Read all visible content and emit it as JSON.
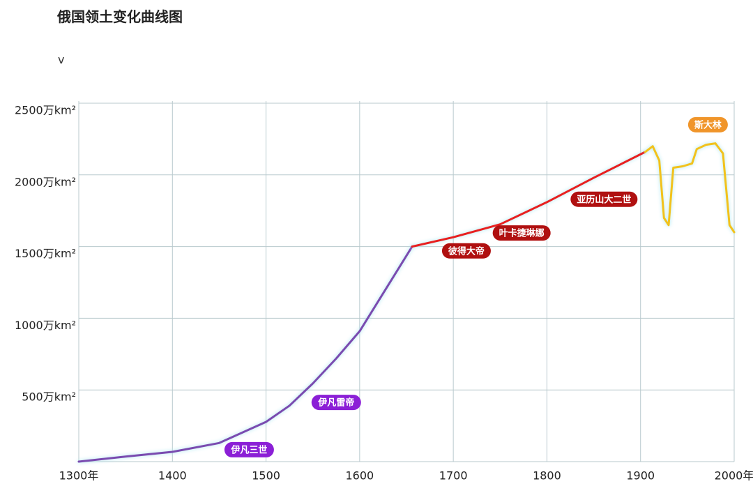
{
  "header": {
    "title": "俄国领土变化曲线图",
    "toggle": "v"
  },
  "chart_data": {
    "type": "line",
    "xlim": [
      1300,
      2000
    ],
    "ylim": [
      0,
      2500
    ],
    "xticks": [
      {
        "value": 1300,
        "label": "1300年"
      },
      1400,
      1500,
      1600,
      1700,
      1800,
      1900,
      {
        "value": 2000,
        "label": "2000年"
      }
    ],
    "yticks": [
      {
        "value": 500,
        "label": "500万km²"
      },
      {
        "value": 1000,
        "label": "1000万km²"
      },
      {
        "value": 1500,
        "label": "1500万km²"
      },
      {
        "value": 2000,
        "label": "2000万km²"
      },
      {
        "value": 2500,
        "label": "2500万km²"
      }
    ],
    "grid": true,
    "series": [
      {
        "color": "#7a4bb0",
        "x": [
          1300,
          1350,
          1400,
          1450,
          1500,
          1525,
          1550,
          1575,
          1600,
          1630,
          1656
        ],
        "values": [
          0,
          35,
          68,
          130,
          277,
          390,
          545,
          720,
          910,
          1225,
          1500
        ]
      },
      {
        "color": "#e82020",
        "x": [
          1656,
          1700,
          1750,
          1800,
          1850,
          1905
        ],
        "values": [
          1500,
          1565,
          1655,
          1810,
          1980,
          2160
        ]
      },
      {
        "color": "#f2c21c",
        "x": [
          1905,
          1913,
          1920,
          1925,
          1930,
          1935,
          1945,
          1955,
          1960,
          1970,
          1980,
          1988,
          1995,
          2000
        ],
        "values": [
          2160,
          2200,
          2100,
          1700,
          1650,
          2050,
          2060,
          2080,
          2180,
          2210,
          2220,
          2150,
          1650,
          1600
        ]
      }
    ],
    "annotations": [
      {
        "text": "伊凡三世",
        "x": 1482,
        "y": 83,
        "color": "#8b1fd6"
      },
      {
        "text": "伊凡雷帝",
        "x": 1575,
        "y": 413,
        "color": "#8b1fd6"
      },
      {
        "text": "彼得大帝",
        "x": 1714,
        "y": 1470,
        "color": "#b01010"
      },
      {
        "text": "叶卡捷琳娜",
        "x": 1773,
        "y": 1595,
        "color": "#b01010"
      },
      {
        "text": "亚历山大二世",
        "x": 1861,
        "y": 1830,
        "color": "#b01010"
      },
      {
        "text": "斯大林",
        "x": 1972,
        "y": 2350,
        "color": "#f0952a"
      }
    ]
  }
}
